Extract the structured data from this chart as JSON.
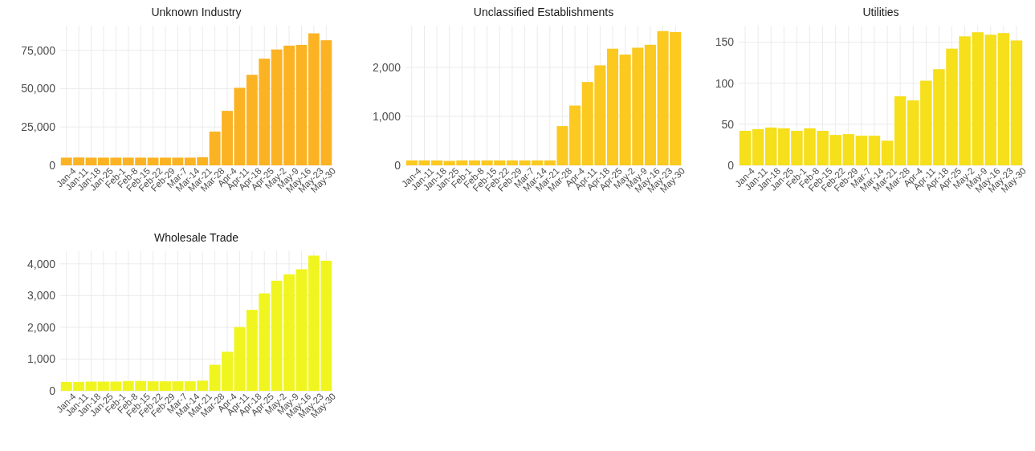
{
  "chart_data": [
    {
      "type": "bar",
      "title": "Unknown Industry",
      "categories": [
        "Jan-4",
        "Jan-11",
        "Jan-18",
        "Jan-25",
        "Feb-1",
        "Feb-8",
        "Feb-15",
        "Feb-22",
        "Feb-29",
        "Mar-7",
        "Mar-14",
        "Mar-21",
        "Mar-28",
        "Apr-4",
        "Apr-11",
        "Apr-18",
        "Apr-25",
        "May-2",
        "May-9",
        "May-16",
        "May-23",
        "May-30"
      ],
      "values": [
        5000,
        5100,
        5000,
        5000,
        5000,
        5000,
        5000,
        5000,
        5000,
        5000,
        5000,
        5300,
        22000,
        35500,
        50500,
        59000,
        69500,
        75500,
        78000,
        78500,
        86000,
        81500
      ],
      "color": "#fbb323",
      "ylim": [
        0,
        91000
      ],
      "yticks": [
        {
          "value": 0,
          "label": "0"
        },
        {
          "value": 25000,
          "label": "25,000"
        },
        {
          "value": 50000,
          "label": "50,000"
        },
        {
          "value": 75000,
          "label": "75,000"
        }
      ],
      "grid": true
    },
    {
      "type": "bar",
      "title": "Unclassified Establishments",
      "categories": [
        "Jan-4",
        "Jan-11",
        "Jan-18",
        "Jan-25",
        "Feb-1",
        "Feb-8",
        "Feb-15",
        "Feb-22",
        "Feb-29",
        "Mar-7",
        "Mar-14",
        "Mar-21",
        "Mar-28",
        "Apr-4",
        "Apr-11",
        "Apr-18",
        "Apr-25",
        "May-2",
        "May-9",
        "May-16",
        "May-23",
        "May-30"
      ],
      "values": [
        100,
        100,
        100,
        90,
        100,
        100,
        100,
        100,
        100,
        100,
        100,
        100,
        800,
        1220,
        1700,
        2040,
        2380,
        2260,
        2400,
        2460,
        2740,
        2720
      ],
      "color": "#fbc91f",
      "ylim": [
        0,
        2850
      ],
      "yticks": [
        {
          "value": 0,
          "label": "0"
        },
        {
          "value": 1000,
          "label": "1,000"
        },
        {
          "value": 2000,
          "label": "2,000"
        }
      ],
      "grid": true
    },
    {
      "type": "bar",
      "title": "Utilities",
      "categories": [
        "Jan-4",
        "Jan-11",
        "Jan-18",
        "Jan-25",
        "Feb-1",
        "Feb-8",
        "Feb-15",
        "Feb-22",
        "Feb-29",
        "Mar-7",
        "Mar-14",
        "Mar-21",
        "Mar-28",
        "Apr-4",
        "Apr-11",
        "Apr-18",
        "Apr-25",
        "May-2",
        "May-9",
        "May-16",
        "May-23",
        "May-30"
      ],
      "values": [
        42,
        44,
        46,
        45,
        42,
        45,
        42,
        37,
        38,
        36,
        36,
        30,
        84,
        79,
        103,
        117,
        142,
        157,
        162,
        159,
        161,
        152
      ],
      "color": "#f6df1b",
      "ylim": [
        0,
        170
      ],
      "yticks": [
        0,
        50,
        100,
        150
      ],
      "grid": true
    },
    {
      "type": "bar",
      "title": "Wholesale Trade",
      "categories": [
        "Jan-4",
        "Jan-11",
        "Jan-18",
        "Jan-25",
        "Feb-1",
        "Feb-8",
        "Feb-15",
        "Feb-22",
        "Feb-29",
        "Mar-7",
        "Mar-14",
        "Mar-21",
        "Mar-28",
        "Apr-4",
        "Apr-11",
        "Apr-18",
        "Apr-25",
        "May-2",
        "May-9",
        "May-16",
        "May-23",
        "May-30"
      ],
      "values": [
        280,
        280,
        290,
        290,
        290,
        310,
        310,
        300,
        300,
        300,
        300,
        320,
        820,
        1230,
        2010,
        2550,
        3070,
        3470,
        3670,
        3830,
        4260,
        4100
      ],
      "color": "#f0f51f",
      "ylim": [
        0,
        4400
      ],
      "yticks": [
        {
          "value": 0,
          "label": "0"
        },
        {
          "value": 1000,
          "label": "1,000"
        },
        {
          "value": 2000,
          "label": "2,000"
        },
        {
          "value": 3000,
          "label": "3,000"
        },
        {
          "value": 4000,
          "label": "4,000"
        }
      ],
      "grid": true
    }
  ]
}
